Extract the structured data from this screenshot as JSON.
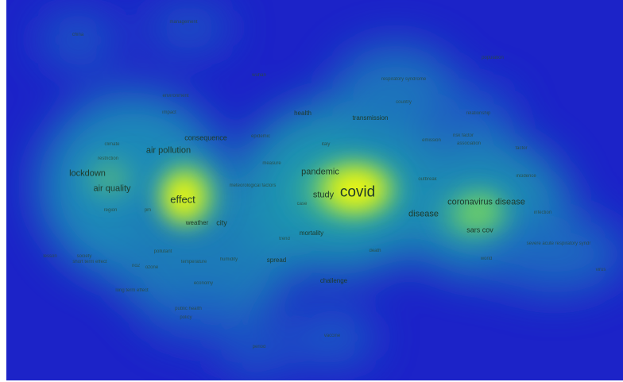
{
  "terms": [
    {
      "text": "covid",
      "size": 5
    },
    {
      "text": "effect",
      "size": 4
    },
    {
      "text": "coronavirus disease",
      "size": 3
    },
    {
      "text": "pandemic",
      "size": 3
    },
    {
      "text": "study",
      "size": 3
    },
    {
      "text": "air pollution",
      "size": 3
    },
    {
      "text": "lockdown",
      "size": 3
    },
    {
      "text": "air quality",
      "size": 3
    },
    {
      "text": "disease",
      "size": 3
    },
    {
      "text": "sars cov",
      "size": 2
    },
    {
      "text": "consequence",
      "size": 2
    },
    {
      "text": "city",
      "size": 2
    },
    {
      "text": "weather",
      "size": 1
    },
    {
      "text": "mortality",
      "size": 1
    },
    {
      "text": "challenge",
      "size": 1
    },
    {
      "text": "spread",
      "size": 1
    },
    {
      "text": "health",
      "size": 1
    },
    {
      "text": "transmission",
      "size": 1
    },
    {
      "text": "meteorological factors",
      "size": 0
    },
    {
      "text": "respiratory syndrome",
      "size": 0
    },
    {
      "text": "severe acute respiratory syndr",
      "size": 0
    },
    {
      "text": "epidemic",
      "size": 0
    },
    {
      "text": "climate",
      "size": 0
    },
    {
      "text": "temperature",
      "size": 0
    },
    {
      "text": "humidity",
      "size": 0
    },
    {
      "text": "management",
      "size": 0
    },
    {
      "text": "pollutant",
      "size": 0
    },
    {
      "text": "economy",
      "size": 0
    },
    {
      "text": "environment",
      "size": 0
    },
    {
      "text": "public health",
      "size": 0
    },
    {
      "text": "ozone",
      "size": 0
    },
    {
      "text": "impact",
      "size": 0
    },
    {
      "text": "risk factor",
      "size": 0
    },
    {
      "text": "pm",
      "size": 0
    },
    {
      "text": "no2",
      "size": 0
    },
    {
      "text": "restriction",
      "size": 0
    },
    {
      "text": "short term effect",
      "size": 0
    },
    {
      "text": "long term effect",
      "size": 0
    },
    {
      "text": "population",
      "size": 0
    },
    {
      "text": "association",
      "size": 0
    },
    {
      "text": "case",
      "size": 0
    },
    {
      "text": "death",
      "size": 0
    },
    {
      "text": "china",
      "size": 0
    },
    {
      "text": "wuhan",
      "size": 0
    },
    {
      "text": "italy",
      "size": 0
    },
    {
      "text": "country",
      "size": 0
    },
    {
      "text": "outbreak",
      "size": 0
    },
    {
      "text": "region",
      "size": 0
    },
    {
      "text": "emission",
      "size": 0
    },
    {
      "text": "factor",
      "size": 0
    },
    {
      "text": "relationship",
      "size": 0
    },
    {
      "text": "trend",
      "size": 0
    },
    {
      "text": "incidence",
      "size": 0
    },
    {
      "text": "infection",
      "size": 0
    },
    {
      "text": "virus",
      "size": 0
    },
    {
      "text": "society",
      "size": 0
    },
    {
      "text": "policy",
      "size": 0
    },
    {
      "text": "lesson",
      "size": 0
    },
    {
      "text": "world",
      "size": 0
    },
    {
      "text": "vaccine",
      "size": 0
    },
    {
      "text": "measure",
      "size": 0
    },
    {
      "text": "period",
      "size": 0
    }
  ],
  "colors": {
    "low": "#1c23c8",
    "mid": "#1fb7a6",
    "high": "#fff200"
  }
}
